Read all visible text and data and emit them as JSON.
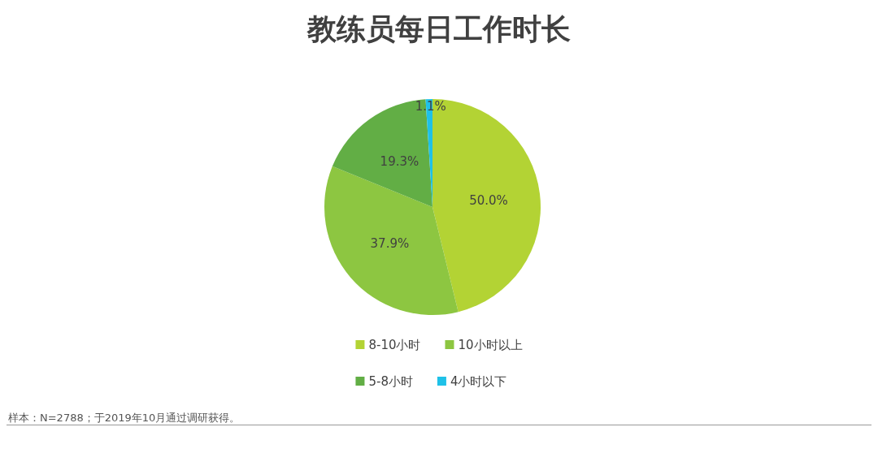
{
  "chart_data": {
    "type": "pie",
    "title": "教练员每日工作时长",
    "categories": [
      "8-10小时",
      "10小时以上",
      "5-8小时",
      "4小时以下"
    ],
    "values": [
      50.0,
      37.9,
      19.3,
      1.1
    ],
    "colors": [
      "#b3d334",
      "#8dc641",
      "#62ae45",
      "#1fc1e8"
    ],
    "value_labels": [
      "50.0%",
      "37.9%",
      "19.3%",
      "1.1%"
    ],
    "legend": "bottom",
    "annotations": [
      "样本：N=2788；于2019年10月通过调研获得。"
    ]
  }
}
